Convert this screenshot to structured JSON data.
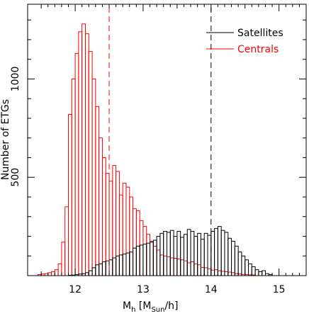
{
  "chart_data": {
    "type": "bar",
    "subtype": "step-histogram",
    "xlabel_main": "M",
    "xlabel_sub": "h",
    "xlabel_unit_open": "[M",
    "xlabel_unit_sub": "Sun",
    "xlabel_unit_close": "/h]",
    "ylabel": "Number of ETGs",
    "xlim": [
      11.3,
      15.4
    ],
    "ylim": [
      0,
      1380
    ],
    "x_ticks": [
      "12",
      "13",
      "14",
      "15"
    ],
    "y_ticks": [
      "500",
      "1000"
    ],
    "bin_width": 0.05,
    "vlines": [
      {
        "x": 12.5,
        "color": "#ff0000",
        "style": "dashed"
      },
      {
        "x": 14.0,
        "color": "#000000",
        "style": "dashed"
      }
    ],
    "legend_position": "top-right",
    "series": [
      {
        "name": "Satellites",
        "color": "#000000",
        "bin_start": 11.9,
        "values": [
          2,
          3,
          5,
          8,
          10,
          15,
          25,
          40,
          55,
          60,
          70,
          75,
          80,
          90,
          100,
          105,
          110,
          115,
          120,
          140,
          150,
          155,
          160,
          165,
          170,
          180,
          200,
          215,
          225,
          220,
          230,
          200,
          225,
          195,
          210,
          235,
          225,
          200,
          215,
          185,
          215,
          205,
          225,
          240,
          250,
          230,
          220,
          190,
          175,
          150,
          120,
          100,
          80,
          60,
          45,
          30,
          20,
          25,
          10,
          5
        ]
      },
      {
        "name": "Centrals",
        "color": "#ff0000",
        "bin_start": 11.45,
        "values": [
          5,
          8,
          10,
          15,
          20,
          30,
          60,
          170,
          350,
          820,
          1000,
          1130,
          1240,
          1280,
          1230,
          1140,
          1000,
          860,
          700,
          600,
          520,
          480,
          560,
          530,
          410,
          470,
          450,
          400,
          340,
          330,
          280,
          250,
          210,
          175,
          150,
          130,
          105,
          100,
          95,
          90,
          88,
          85,
          80,
          75,
          65,
          70,
          60,
          55,
          42,
          40,
          35,
          28,
          30,
          25,
          22,
          20,
          18,
          15,
          10,
          8,
          6,
          5,
          4,
          3
        ]
      }
    ]
  }
}
